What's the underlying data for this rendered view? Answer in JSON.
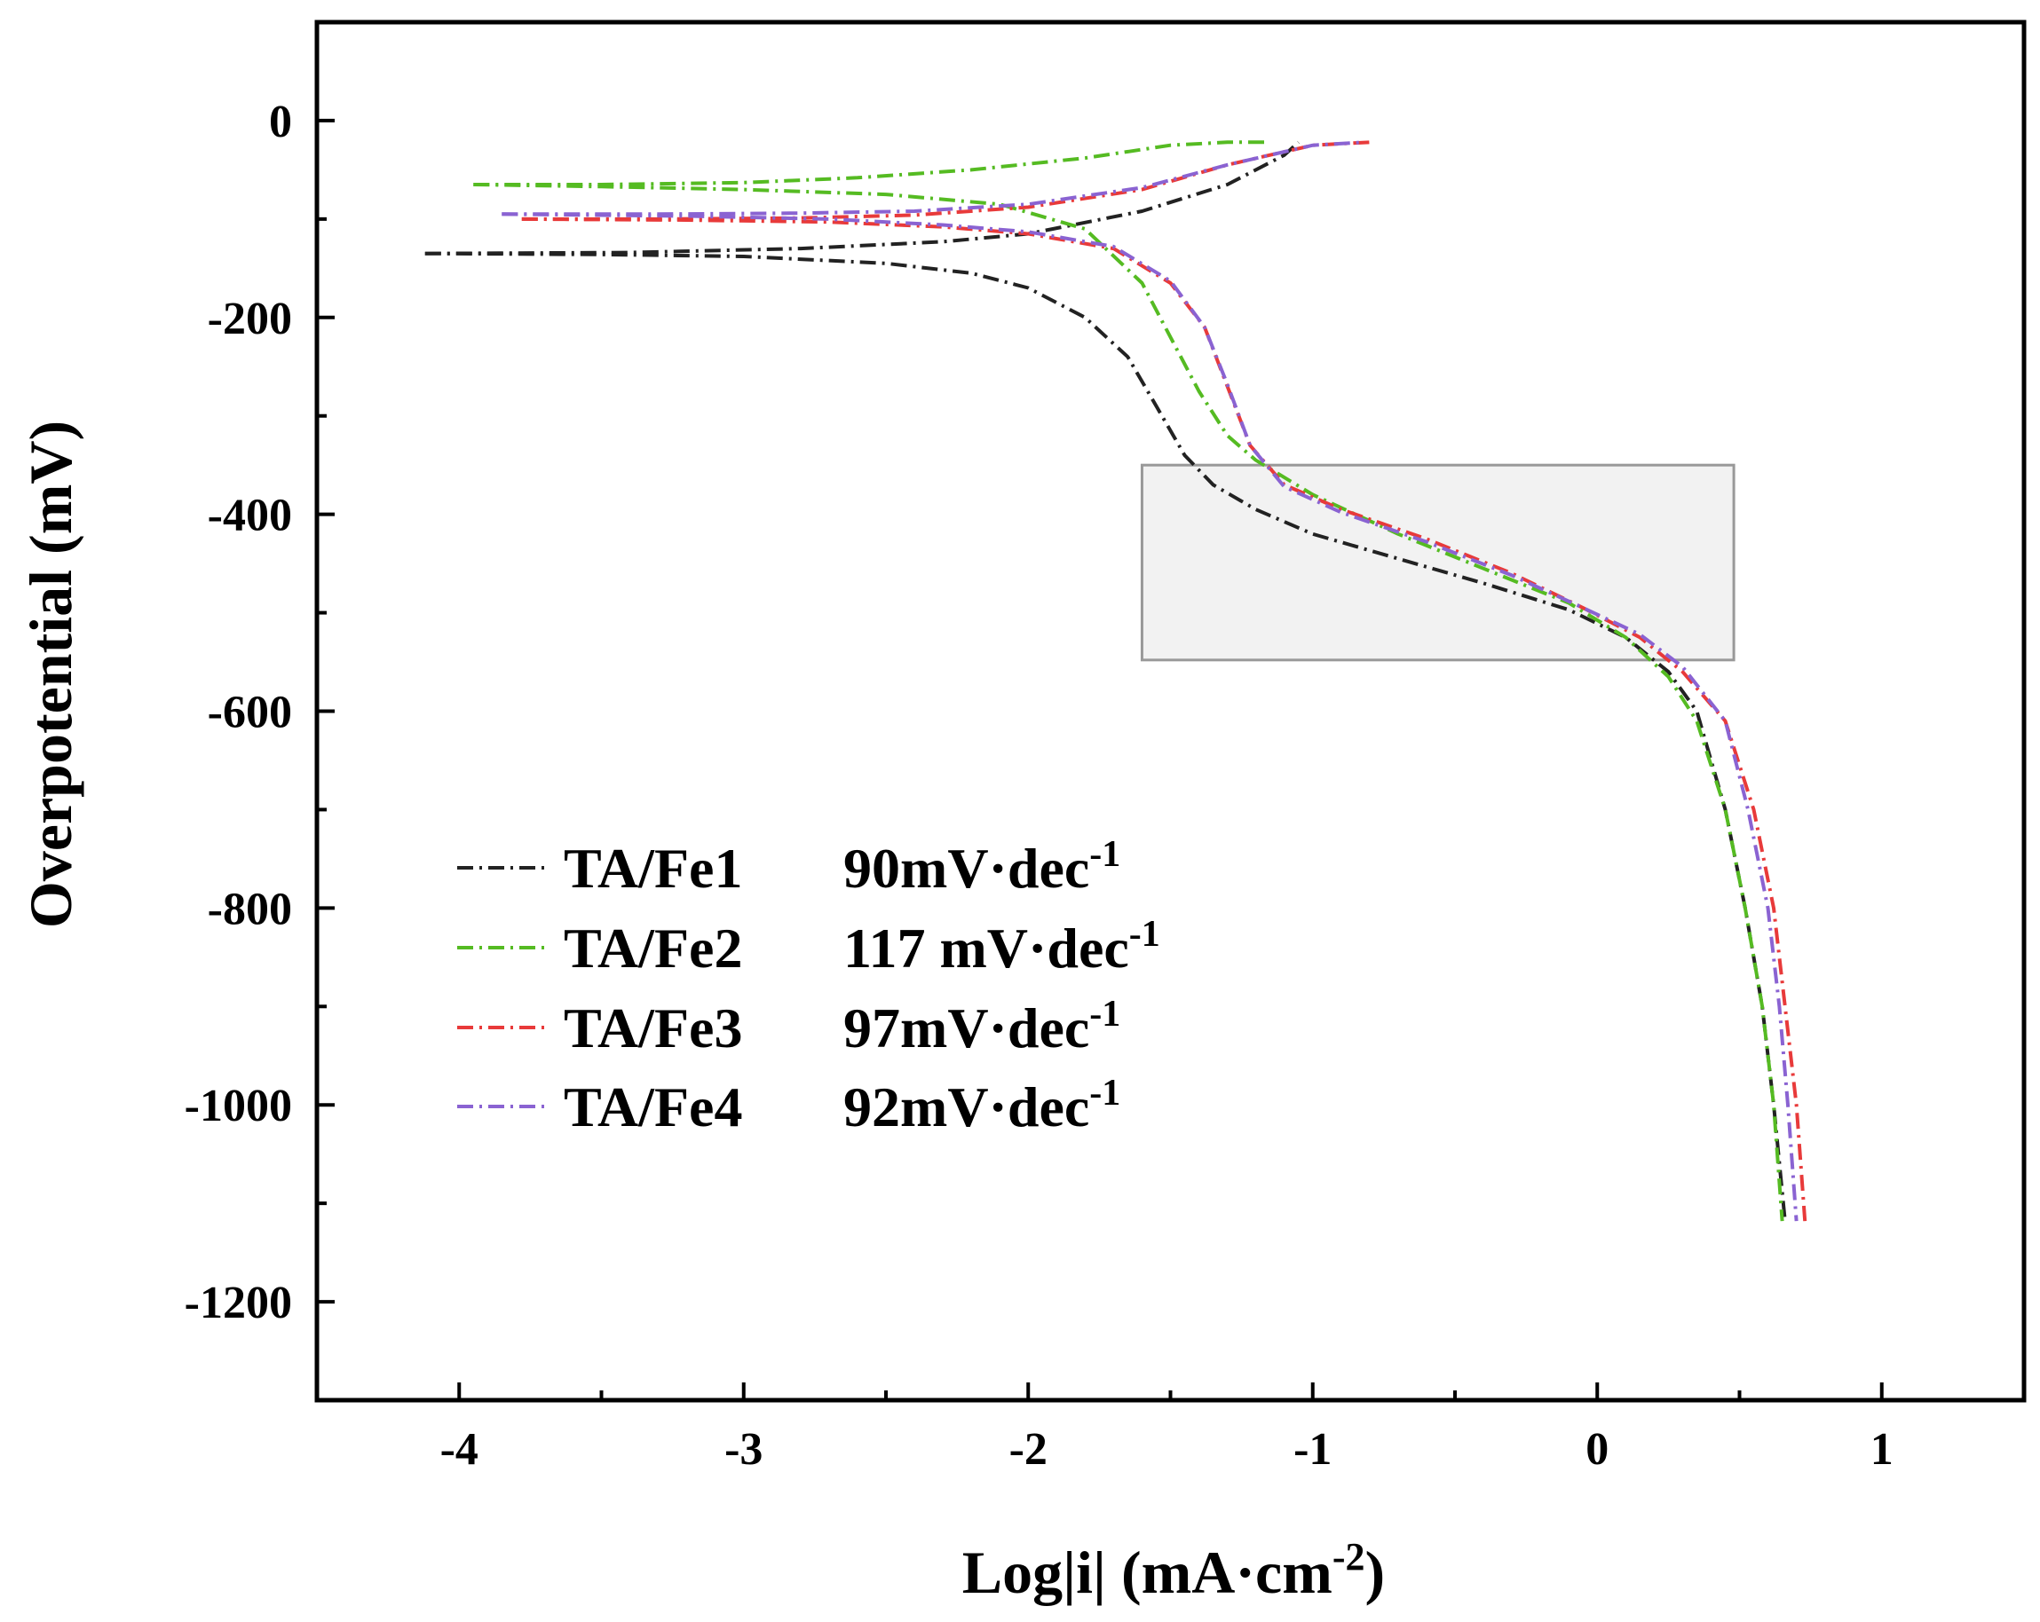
{
  "chart_data": {
    "type": "line",
    "title": "",
    "xlabel": "Log|i| (mA·cm",
    "xlabel_sup": "-2",
    "xlabel_end": ")",
    "ylabel": "Overpotential (mV)",
    "xlim": [
      -4.5,
      1.5
    ],
    "ylim": [
      -1300,
      100
    ],
    "xticks": [
      -4,
      -3,
      -2,
      -1,
      0,
      1
    ],
    "xtick_labels": [
      "-4",
      "-3",
      "-2",
      "-1",
      "0",
      "1"
    ],
    "yticks": [
      0,
      -200,
      -400,
      -600,
      -800,
      -1000,
      -1200
    ],
    "ytick_labels": [
      "0",
      "-200",
      "-400",
      "-600",
      "-800",
      "-1000",
      "-1200"
    ],
    "grid": false,
    "legend_position": "lower-left",
    "highlight_box": {
      "x": [
        -1.6,
        0.48
      ],
      "y": [
        -548,
        -350
      ],
      "fill": "#f2f2f2",
      "stroke": "#999999"
    },
    "series": [
      {
        "name": "TA/Fe1",
        "slope_label": "90mV·dec",
        "color": "#222222",
        "branches": [
          [
            [
              -4.12,
              -135
            ],
            [
              -3.4,
              -134
            ],
            [
              -2.8,
              -130
            ],
            [
              -2.3,
              -123
            ],
            [
              -2.0,
              -115
            ],
            [
              -1.6,
              -92
            ],
            [
              -1.3,
              -65
            ],
            [
              -1.1,
              -35
            ],
            [
              -1.05,
              -22
            ]
          ],
          [
            [
              -4.12,
              -135
            ],
            [
              -3.5,
              -136
            ],
            [
              -3.0,
              -138
            ],
            [
              -2.5,
              -145
            ],
            [
              -2.2,
              -155
            ],
            [
              -2.0,
              -170
            ],
            [
              -1.8,
              -200
            ],
            [
              -1.65,
              -240
            ],
            [
              -1.55,
              -290
            ],
            [
              -1.45,
              -340
            ],
            [
              -1.35,
              -370
            ],
            [
              -1.2,
              -395
            ],
            [
              -1.0,
              -420
            ],
            [
              -0.7,
              -445
            ],
            [
              -0.4,
              -470
            ],
            [
              -0.1,
              -497
            ],
            [
              0.1,
              -525
            ],
            [
              0.25,
              -560
            ],
            [
              0.35,
              -600
            ],
            [
              0.45,
              -700
            ],
            [
              0.52,
              -800
            ],
            [
              0.58,
              -900
            ],
            [
              0.62,
              -1000
            ],
            [
              0.66,
              -1118
            ]
          ]
        ]
      },
      {
        "name": "TA/Fe2",
        "slope_label": "117 mV·dec",
        "color": "#55bb22",
        "branches": [
          [
            [
              -3.95,
              -65
            ],
            [
              -3.5,
              -65
            ],
            [
              -3.0,
              -63
            ],
            [
              -2.6,
              -58
            ],
            [
              -2.2,
              -50
            ],
            [
              -1.8,
              -38
            ],
            [
              -1.5,
              -25
            ],
            [
              -1.3,
              -22
            ],
            [
              -1.17,
              -22
            ]
          ],
          [
            [
              -3.95,
              -65
            ],
            [
              -3.5,
              -67
            ],
            [
              -3.0,
              -70
            ],
            [
              -2.5,
              -75
            ],
            [
              -2.1,
              -85
            ],
            [
              -1.8,
              -110
            ],
            [
              -1.6,
              -165
            ],
            [
              -1.5,
              -220
            ],
            [
              -1.4,
              -275
            ],
            [
              -1.3,
              -320
            ],
            [
              -1.2,
              -345
            ],
            [
              -1.0,
              -380
            ],
            [
              -0.7,
              -420
            ],
            [
              -0.4,
              -455
            ],
            [
              -0.1,
              -490
            ],
            [
              0.1,
              -525
            ],
            [
              0.25,
              -565
            ],
            [
              0.35,
              -610
            ],
            [
              0.45,
              -700
            ],
            [
              0.52,
              -800
            ],
            [
              0.58,
              -900
            ],
            [
              0.62,
              -1000
            ],
            [
              0.65,
              -1118
            ]
          ]
        ]
      },
      {
        "name": "TA/Fe3",
        "slope_label": "97mV·dec",
        "color": "#e83a3a",
        "branches": [
          [
            [
              -3.78,
              -100
            ],
            [
              -3.3,
              -100
            ],
            [
              -2.8,
              -99
            ],
            [
              -2.4,
              -96
            ],
            [
              -2.0,
              -88
            ],
            [
              -1.6,
              -70
            ],
            [
              -1.3,
              -45
            ],
            [
              -1.0,
              -25
            ],
            [
              -0.8,
              -22
            ]
          ],
          [
            [
              -3.78,
              -100
            ],
            [
              -3.2,
              -101
            ],
            [
              -2.7,
              -103
            ],
            [
              -2.3,
              -108
            ],
            [
              -2.0,
              -115
            ],
            [
              -1.7,
              -130
            ],
            [
              -1.5,
              -165
            ],
            [
              -1.38,
              -210
            ],
            [
              -1.3,
              -270
            ],
            [
              -1.22,
              -330
            ],
            [
              -1.1,
              -370
            ],
            [
              -0.9,
              -395
            ],
            [
              -0.6,
              -425
            ],
            [
              -0.3,
              -460
            ],
            [
              -0.05,
              -495
            ],
            [
              0.15,
              -525
            ],
            [
              0.3,
              -560
            ],
            [
              0.45,
              -610
            ],
            [
              0.55,
              -700
            ],
            [
              0.62,
              -800
            ],
            [
              0.66,
              -900
            ],
            [
              0.7,
              -1000
            ],
            [
              0.73,
              -1118
            ]
          ]
        ]
      },
      {
        "name": "TA/Fe4",
        "slope_label": "92mV·dec",
        "color": "#8a63d2",
        "branches": [
          [
            [
              -3.85,
              -95
            ],
            [
              -3.3,
              -95
            ],
            [
              -2.8,
              -94
            ],
            [
              -2.4,
              -92
            ],
            [
              -2.0,
              -85
            ],
            [
              -1.6,
              -68
            ],
            [
              -1.3,
              -45
            ],
            [
              -1.0,
              -25
            ],
            [
              -0.82,
              -22
            ]
          ],
          [
            [
              -3.85,
              -95
            ],
            [
              -3.2,
              -97
            ],
            [
              -2.7,
              -100
            ],
            [
              -2.3,
              -106
            ],
            [
              -2.0,
              -113
            ],
            [
              -1.7,
              -128
            ],
            [
              -1.5,
              -163
            ],
            [
              -1.38,
              -210
            ],
            [
              -1.3,
              -268
            ],
            [
              -1.22,
              -330
            ],
            [
              -1.1,
              -372
            ],
            [
              -0.9,
              -398
            ],
            [
              -0.6,
              -428
            ],
            [
              -0.3,
              -462
            ],
            [
              -0.05,
              -495
            ],
            [
              0.15,
              -522
            ],
            [
              0.3,
              -555
            ],
            [
              0.45,
              -610
            ],
            [
              0.53,
              -700
            ],
            [
              0.6,
              -800
            ],
            [
              0.64,
              -900
            ],
            [
              0.67,
              -1000
            ],
            [
              0.7,
              -1118
            ]
          ]
        ]
      }
    ]
  }
}
